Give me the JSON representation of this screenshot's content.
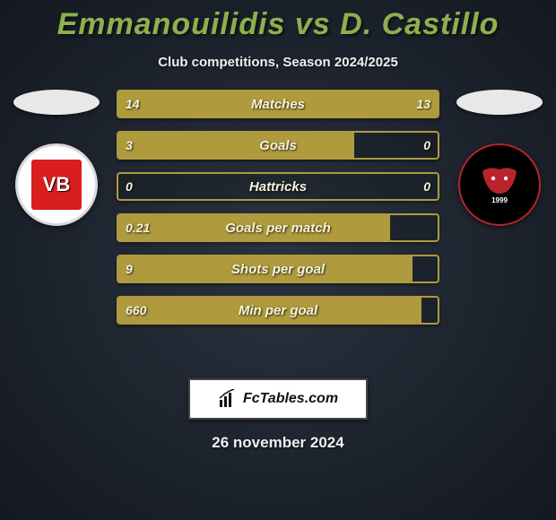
{
  "title": {
    "player1": "Emmanouilidis",
    "vs": "vs",
    "player2": "D. Castillo",
    "color": "#8db04e",
    "fontsize": 34
  },
  "subtitle": "Club competitions, Season 2024/2025",
  "left_club": {
    "name": "VB",
    "badge_bg": "#ffffff",
    "badge_inner": "#d91e1e"
  },
  "right_club": {
    "name": "FC Midtjylland",
    "year": "1999",
    "badge_bg": "#000000",
    "badge_ring": "#b8242b",
    "wolf_color": "#b8242b"
  },
  "bars": {
    "border_color": "#b09a3e",
    "fill_left_color": "#b09a3e",
    "fill_right_color": "#b09a3e",
    "track_color": "rgba(0,0,0,0.15)",
    "height": 32,
    "gap": 14,
    "rows": [
      {
        "label": "Matches",
        "left_val": "14",
        "right_val": "13",
        "left_pct": 52,
        "right_pct": 48
      },
      {
        "label": "Goals",
        "left_val": "3",
        "right_val": "0",
        "left_pct": 74,
        "right_pct": 0
      },
      {
        "label": "Hattricks",
        "left_val": "0",
        "right_val": "0",
        "left_pct": 0,
        "right_pct": 0
      },
      {
        "label": "Goals per match",
        "left_val": "0.21",
        "right_val": "",
        "left_pct": 85,
        "right_pct": 0
      },
      {
        "label": "Shots per goal",
        "left_val": "9",
        "right_val": "",
        "left_pct": 92,
        "right_pct": 0
      },
      {
        "label": "Min per goal",
        "left_val": "660",
        "right_val": "",
        "left_pct": 95,
        "right_pct": 0
      }
    ]
  },
  "footer": {
    "site": "FcTables.com",
    "date": "26 november 2024"
  },
  "colors": {
    "bg_inner": "#2a3340",
    "bg_outer": "#141820",
    "text": "#f0f0f0",
    "bar_text": "#f6f3d8"
  }
}
